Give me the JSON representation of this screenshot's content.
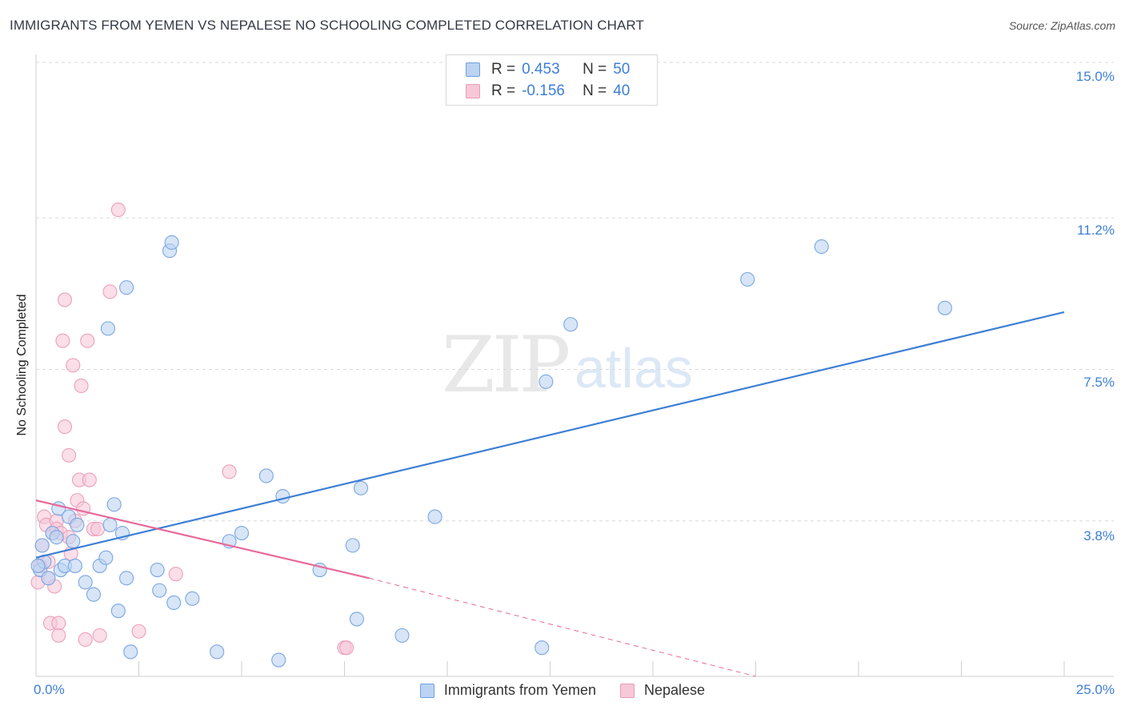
{
  "title": "IMMIGRANTS FROM YEMEN VS NEPALESE NO SCHOOLING COMPLETED CORRELATION CHART",
  "source": "Source: ZipAtlas.com",
  "watermark": {
    "zip": "ZIP",
    "atlas": "atlas"
  },
  "legend": {
    "r_label": "R =",
    "n_label": "N =",
    "rows": [
      {
        "r": "0.453",
        "n": "50"
      },
      {
        "r": "-0.156",
        "n": "40"
      }
    ]
  },
  "chart_data": {
    "type": "scatter",
    "title": "IMMIGRANTS FROM YEMEN VS NEPALESE NO SCHOOLING COMPLETED CORRELATION CHART",
    "xlabel": "",
    "ylabel": "No Schooling Completed",
    "xlim": [
      0,
      25
    ],
    "ylim": [
      0,
      15.8
    ],
    "x_tick_labels": [
      "0.0%",
      "25.0%"
    ],
    "y_ticks": [
      3.8,
      7.5,
      11.2,
      15.0
    ],
    "y_tick_labels": [
      "3.8%",
      "7.5%",
      "11.2%",
      "15.0%"
    ],
    "grid": true,
    "legend_position": "bottom",
    "colors": {
      "yemen": "#3d7fd6",
      "nepalese": "#e8699a",
      "yemen_fill": "#bcd3f2",
      "nepalese_fill": "#f7c8d8"
    },
    "series": [
      {
        "name": "Immigrants from Yemen",
        "r": 0.453,
        "n": 50,
        "trend": {
          "x": [
            0,
            25
          ],
          "y": [
            2.9,
            8.9
          ],
          "extrapolated_to": null
        },
        "points": [
          [
            0.1,
            2.6
          ],
          [
            0.2,
            2.8
          ],
          [
            0.15,
            3.2
          ],
          [
            0.3,
            2.4
          ],
          [
            0.4,
            3.5
          ],
          [
            0.5,
            3.4
          ],
          [
            0.55,
            4.1
          ],
          [
            0.6,
            2.6
          ],
          [
            0.7,
            2.7
          ],
          [
            0.8,
            3.9
          ],
          [
            0.9,
            3.3
          ],
          [
            0.95,
            2.7
          ],
          [
            1.0,
            3.7
          ],
          [
            1.2,
            2.3
          ],
          [
            1.4,
            2.0
          ],
          [
            1.55,
            2.7
          ],
          [
            1.8,
            3.7
          ],
          [
            1.7,
            2.9
          ],
          [
            1.75,
            8.5
          ],
          [
            1.9,
            4.2
          ],
          [
            2.0,
            1.6
          ],
          [
            2.1,
            3.5
          ],
          [
            2.2,
            9.5
          ],
          [
            2.2,
            2.4
          ],
          [
            2.3,
            0.6
          ],
          [
            2.95,
            2.6
          ],
          [
            3.0,
            2.1
          ],
          [
            3.25,
            10.4
          ],
          [
            3.3,
            10.6
          ],
          [
            3.35,
            1.8
          ],
          [
            3.8,
            1.9
          ],
          [
            4.4,
            0.6
          ],
          [
            4.7,
            3.3
          ],
          [
            5.0,
            3.5
          ],
          [
            5.6,
            4.9
          ],
          [
            5.9,
            0.4
          ],
          [
            6.0,
            4.4
          ],
          [
            6.9,
            2.6
          ],
          [
            7.7,
            3.2
          ],
          [
            7.8,
            1.4
          ],
          [
            7.9,
            4.6
          ],
          [
            8.9,
            1.0
          ],
          [
            9.7,
            3.9
          ],
          [
            12.3,
            0.7
          ],
          [
            12.4,
            7.2
          ],
          [
            13.0,
            8.6
          ],
          [
            17.3,
            9.7
          ],
          [
            19.1,
            10.5
          ],
          [
            22.1,
            9.0
          ],
          [
            0.05,
            2.7
          ]
        ]
      },
      {
        "name": "Nepalese",
        "r": -0.156,
        "n": 40,
        "trend": {
          "x": [
            0,
            8.1
          ],
          "y": [
            4.3,
            2.4
          ],
          "extrapolated_to": [
            17.5,
            0
          ]
        },
        "points": [
          [
            0.05,
            2.3
          ],
          [
            0.1,
            2.7
          ],
          [
            0.15,
            3.2
          ],
          [
            0.2,
            3.9
          ],
          [
            0.25,
            3.7
          ],
          [
            0.3,
            2.4
          ],
          [
            0.35,
            1.3
          ],
          [
            0.4,
            3.5
          ],
          [
            0.45,
            2.2
          ],
          [
            0.5,
            3.8
          ],
          [
            0.5,
            3.6
          ],
          [
            0.55,
            1.3
          ],
          [
            0.55,
            1.0
          ],
          [
            0.6,
            3.5
          ],
          [
            0.65,
            8.2
          ],
          [
            0.7,
            9.2
          ],
          [
            0.7,
            6.1
          ],
          [
            0.8,
            5.4
          ],
          [
            0.8,
            3.4
          ],
          [
            0.85,
            3.0
          ],
          [
            0.9,
            7.6
          ],
          [
            0.95,
            3.8
          ],
          [
            1.0,
            4.3
          ],
          [
            1.05,
            4.8
          ],
          [
            1.1,
            7.1
          ],
          [
            1.15,
            4.1
          ],
          [
            1.2,
            0.9
          ],
          [
            1.25,
            8.2
          ],
          [
            1.3,
            4.8
          ],
          [
            1.4,
            3.6
          ],
          [
            1.55,
            1.0
          ],
          [
            1.8,
            9.4
          ],
          [
            2.0,
            11.4
          ],
          [
            2.5,
            1.1
          ],
          [
            3.4,
            2.5
          ],
          [
            4.7,
            5.0
          ],
          [
            7.5,
            0.7
          ],
          [
            7.55,
            0.7
          ],
          [
            1.5,
            3.6
          ],
          [
            0.3,
            2.8
          ]
        ]
      }
    ]
  }
}
